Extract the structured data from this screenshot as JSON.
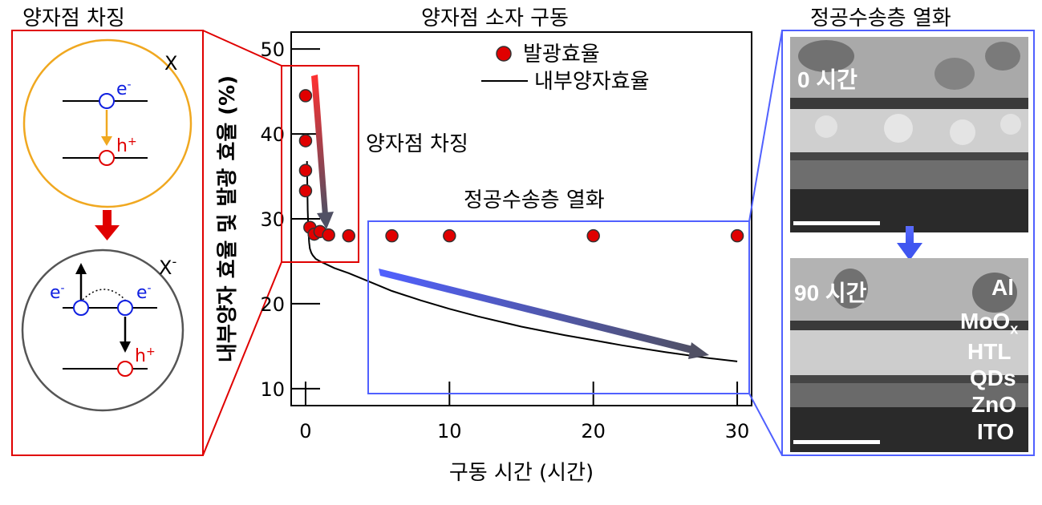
{
  "titles": {
    "left": "양자점 차징",
    "middle": "양자점 소자 구동",
    "right": "정공수송층 열화"
  },
  "diagram": {
    "exciton_label": "X",
    "trion_label": "X",
    "trion_sup": "-",
    "electron": "e",
    "electron_sup": "-",
    "hole": "h",
    "hole_sup": "+"
  },
  "chart_data": {
    "type": "scatter",
    "xlabel": "구동 시간 (시간)",
    "ylabel": "내부양자 효율 및 발광 효율 (%)",
    "xlim": [
      -1,
      31
    ],
    "ylim": [
      8,
      52
    ],
    "xticks": [
      0,
      10,
      20,
      30
    ],
    "yticks": [
      10,
      20,
      30,
      40,
      50
    ],
    "legend_position": "top-right",
    "series": [
      {
        "name": "발광효율",
        "kind": "markers",
        "color": "#e00000",
        "x": [
          0,
          0,
          0,
          0,
          0.3,
          0.6,
          1.0,
          1.6,
          3.0,
          6,
          10,
          20,
          30
        ],
        "y": [
          44.5,
          39.2,
          35.7,
          33.3,
          29.0,
          28.2,
          28.5,
          28.1,
          28.0,
          28.0,
          28.0,
          28.0,
          28.0
        ]
      },
      {
        "name": "내부양자효율",
        "kind": "line",
        "color": "#000000",
        "x": [
          0.1,
          0.15,
          0.2,
          0.25,
          0.3,
          0.4,
          0.5,
          0.7,
          1,
          1.5,
          2,
          3,
          4,
          5,
          6,
          8,
          10,
          12,
          15,
          18,
          20,
          22,
          25,
          28,
          30
        ],
        "y": [
          36.8,
          31.0,
          28.5,
          27.2,
          26.5,
          26.0,
          25.7,
          25.3,
          25.0,
          24.6,
          24.2,
          23.6,
          22.9,
          22.2,
          21.5,
          20.4,
          19.4,
          18.5,
          17.3,
          16.3,
          15.7,
          15.1,
          14.3,
          13.6,
          13.2
        ]
      }
    ],
    "annotations": [
      {
        "text": "양자점 차징"
      },
      {
        "text": "정공수송층 열화"
      }
    ]
  },
  "tem": {
    "top_label": "0 시간",
    "bottom_label": "90 시간",
    "layers": [
      "Al",
      "MoO",
      "HTL",
      "QDs",
      "ZnO",
      "ITO"
    ],
    "moo_sub": "x"
  }
}
